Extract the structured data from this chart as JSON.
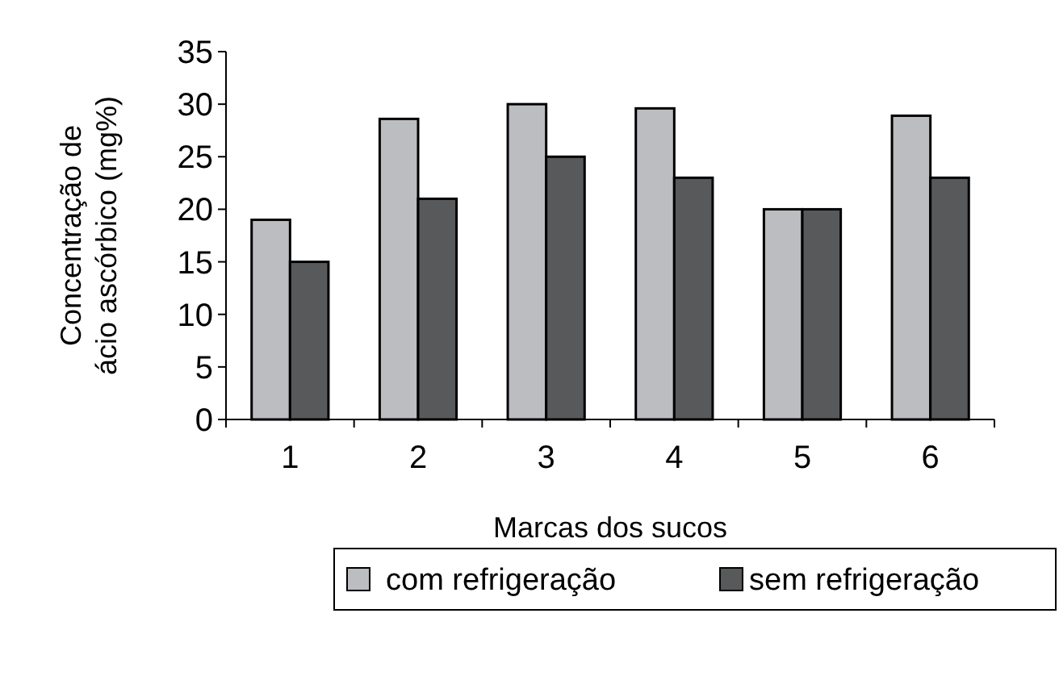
{
  "chart_data": {
    "type": "bar",
    "xlabel": "Marcas dos sucos",
    "ylabel": "Concentração de ácio ascórbico (mg%)",
    "categories": [
      "1",
      "2",
      "3",
      "4",
      "5",
      "6"
    ],
    "series": [
      {
        "name": "com refrigeração",
        "color": "#bcbdc1",
        "values": [
          19,
          28.6,
          30,
          29.6,
          20,
          28.9
        ]
      },
      {
        "name": "sem refrigeração",
        "color": "#58595b",
        "values": [
          15,
          21,
          25,
          23,
          20,
          23
        ]
      }
    ],
    "ylim": [
      0,
      35
    ],
    "yticks": [
      0,
      5,
      10,
      15,
      20,
      25,
      30,
      35
    ],
    "grid": false,
    "legend": "bottom"
  }
}
